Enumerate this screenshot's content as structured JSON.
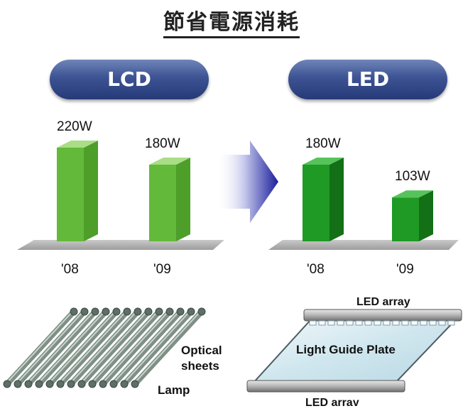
{
  "title": "節省電源消耗",
  "panels": [
    {
      "label": "LCD"
    },
    {
      "label": "LED"
    }
  ],
  "chart_data": [
    {
      "type": "bar",
      "title": "LCD",
      "categories": [
        "'08",
        "'09"
      ],
      "values": [
        220,
        180
      ],
      "value_labels": [
        "220W",
        "180W"
      ],
      "colors": {
        "front": "#63b93a",
        "side": "#4e9e2a",
        "top": "#a9dd86"
      }
    },
    {
      "type": "bar",
      "title": "LED",
      "categories": [
        "'08",
        "'09"
      ],
      "values": [
        180,
        103
      ],
      "value_labels": [
        "180W",
        "103W"
      ],
      "colors": {
        "front": "#1f9a24",
        "side": "#137017",
        "top": "#56c35a"
      }
    }
  ],
  "diagrams": {
    "lcd": {
      "optical_sheets": "Optical\nsheets",
      "lamp": "Lamp"
    },
    "led": {
      "top_array": "LED array",
      "plate": "Light Guide Plate",
      "bottom_array": "LED array"
    }
  }
}
